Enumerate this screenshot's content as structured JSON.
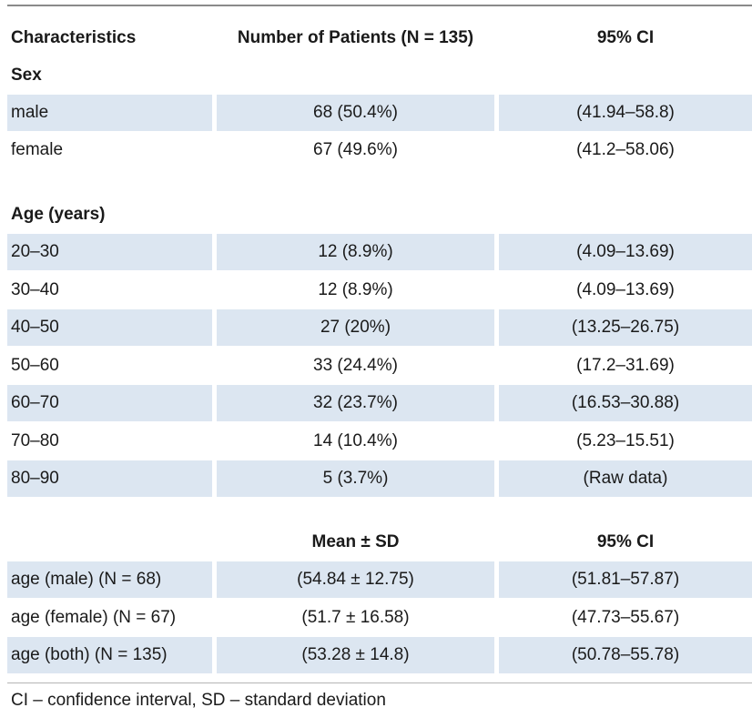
{
  "header": {
    "col1": "Characteristics",
    "col2": "Number of Patients (N = 135)",
    "col3": "95% CI"
  },
  "sex_section": {
    "title": "Sex",
    "rows": [
      {
        "label": "male",
        "count": "68 (50.4%)",
        "ci": "(41.94–58.8)"
      },
      {
        "label": "female",
        "count": "67 (49.6%)",
        "ci": "(41.2–58.06)"
      }
    ]
  },
  "age_section": {
    "title": "Age (years)",
    "rows": [
      {
        "label": "20–30",
        "count": "12 (8.9%)",
        "ci": "(4.09–13.69)"
      },
      {
        "label": "30–40",
        "count": "12 (8.9%)",
        "ci": "(4.09–13.69)"
      },
      {
        "label": "40–50",
        "count": "27 (20%)",
        "ci": "(13.25–26.75)"
      },
      {
        "label": "50–60",
        "count": "33 (24.4%)",
        "ci": "(17.2–31.69)"
      },
      {
        "label": "60–70",
        "count": "32 (23.7%)",
        "ci": "(16.53–30.88)"
      },
      {
        "label": "70–80",
        "count": "14 (10.4%)",
        "ci": "(5.23–15.51)"
      },
      {
        "label": "80–90",
        "count": "5 (3.7%)",
        "ci": "(Raw data)"
      }
    ]
  },
  "mean_section": {
    "col2": "Mean ± SD",
    "col3": "95% CI",
    "rows": [
      {
        "label": "age (male) (N = 68)",
        "mean": "(54.84 ± 12.75)",
        "ci": "(51.81–57.87)"
      },
      {
        "label": "age (female) (N = 67)",
        "mean": "(51.7 ± 16.58)",
        "ci": "(47.73–55.67)"
      },
      {
        "label": "age (both) (N = 135)",
        "mean": "(53.28 ± 14.8)",
        "ci": "(50.78–55.78)"
      }
    ]
  },
  "footnote": "CI – confidence interval, SD – standard deviation"
}
